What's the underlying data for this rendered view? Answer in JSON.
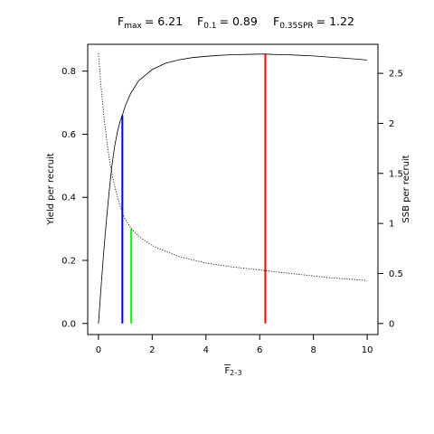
{
  "chart_data": {
    "type": "line",
    "title": {
      "fmax": {
        "base": "F",
        "sub": "max",
        "value": "= 6.21"
      },
      "f01": {
        "base": "F",
        "sub": "0.1",
        "value": "= 0.89"
      },
      "fspr": {
        "base": "F",
        "sub": "0.35SPR",
        "value": "= 1.22"
      }
    },
    "xlabel": {
      "base": "F",
      "sub": "2–3"
    },
    "ylabel_left": "Yield per recruit",
    "ylabel_right": "SSB per recruit",
    "xlim": [
      -0.4,
      10.4
    ],
    "ylim_left": [
      -0.035,
      0.885
    ],
    "ylim_right": [
      -0.11,
      2.79
    ],
    "x_ticks": [
      {
        "value": 0,
        "label": "0"
      },
      {
        "value": 2,
        "label": "2"
      },
      {
        "value": 4,
        "label": "4"
      },
      {
        "value": 6,
        "label": "6"
      },
      {
        "value": 8,
        "label": "8"
      },
      {
        "value": 10,
        "label": "10"
      }
    ],
    "y_ticks_left": [
      {
        "value": 0.0,
        "label": "0.0"
      },
      {
        "value": 0.2,
        "label": "0.2"
      },
      {
        "value": 0.4,
        "label": "0.4"
      },
      {
        "value": 0.6,
        "label": "0.6"
      },
      {
        "value": 0.8,
        "label": "0.8"
      }
    ],
    "y_ticks_right": [
      {
        "value": 0,
        "label": "0"
      },
      {
        "value": 0.5,
        "label": "0.5"
      },
      {
        "value": 1,
        "label": "1"
      },
      {
        "value": 1.5,
        "label": "1.5"
      },
      {
        "value": 2,
        "label": "2"
      },
      {
        "value": 2.5,
        "label": "2.5"
      }
    ],
    "series": [
      {
        "axis": "left",
        "style": "solid",
        "color": "#000000",
        "x": [
          0,
          0.1,
          0.2,
          0.3,
          0.4,
          0.5,
          0.6,
          0.7,
          0.8,
          0.89,
          1.0,
          1.2,
          1.5,
          2,
          2.5,
          3,
          3.5,
          4,
          4.5,
          5,
          5.5,
          6,
          6.21,
          6.5,
          7,
          7.5,
          8,
          8.5,
          9,
          9.5,
          10
        ],
        "y": [
          0,
          0.12,
          0.23,
          0.33,
          0.42,
          0.5,
          0.56,
          0.605,
          0.64,
          0.66,
          0.69,
          0.73,
          0.77,
          0.805,
          0.825,
          0.836,
          0.843,
          0.847,
          0.85,
          0.852,
          0.853,
          0.854,
          0.854,
          0.853,
          0.852,
          0.85,
          0.848,
          0.845,
          0.842,
          0.839,
          0.835
        ]
      },
      {
        "axis": "right",
        "style": "dotted",
        "color": "#000000",
        "x": [
          0,
          0.1,
          0.2,
          0.3,
          0.4,
          0.5,
          0.6,
          0.7,
          0.8,
          0.9,
          1.0,
          1.22,
          1.5,
          2,
          2.5,
          3,
          3.5,
          4,
          4.5,
          5,
          5.5,
          6,
          6.5,
          7,
          7.5,
          8,
          8.5,
          9,
          9.5,
          10
        ],
        "y": [
          2.7,
          2.35,
          2.08,
          1.85,
          1.65,
          1.5,
          1.38,
          1.27,
          1.18,
          1.1,
          1.04,
          0.95,
          0.87,
          0.78,
          0.72,
          0.67,
          0.635,
          0.605,
          0.585,
          0.565,
          0.55,
          0.535,
          0.52,
          0.505,
          0.49,
          0.475,
          0.46,
          0.45,
          0.44,
          0.43
        ]
      }
    ],
    "reference_lines": [
      {
        "label": "F0.1",
        "x": 0.89,
        "y_top": 0.66,
        "color": "#0000ff"
      },
      {
        "label": "F0.35SPR",
        "x": 1.22,
        "y_top": 0.3,
        "color": "#00ff00"
      },
      {
        "label": "Fmax",
        "x": 6.21,
        "y_top": 0.854,
        "color": "#ff0000"
      }
    ],
    "grid": false,
    "legend": "none"
  }
}
